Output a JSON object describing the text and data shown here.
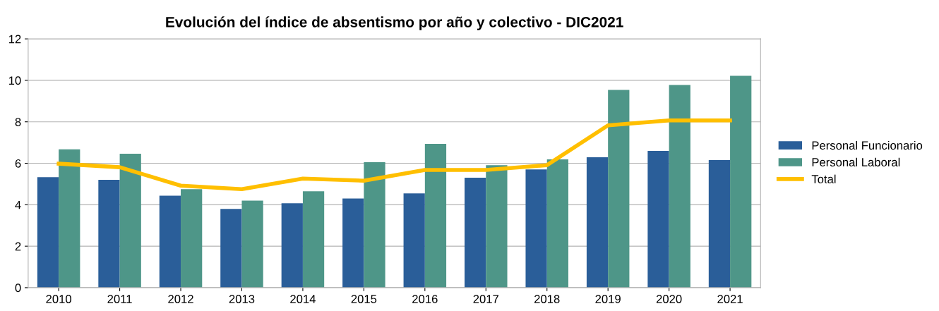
{
  "chart_data": {
    "type": "bar",
    "title": "Evolución del índice de absentismo por año y colectivo - DIC2021",
    "categories": [
      "2010",
      "2011",
      "2012",
      "2013",
      "2014",
      "2015",
      "2016",
      "2017",
      "2018",
      "2019",
      "2020",
      "2021"
    ],
    "series": [
      {
        "name": "Personal Funcionario",
        "color": "#2a5e99",
        "values": [
          5.33,
          5.2,
          4.44,
          3.8,
          4.07,
          4.3,
          4.55,
          5.3,
          5.7,
          6.29,
          6.6,
          6.15
        ]
      },
      {
        "name": "Personal Laboral",
        "color": "#4e9688",
        "values": [
          6.67,
          6.46,
          4.75,
          4.2,
          4.65,
          6.05,
          6.94,
          5.91,
          6.19,
          9.54,
          9.78,
          10.22
        ]
      },
      {
        "name": "Total",
        "type": "line",
        "color": "#ffbf00",
        "values": [
          5.98,
          5.81,
          4.92,
          4.75,
          5.26,
          5.16,
          5.68,
          5.68,
          5.91,
          7.83,
          8.07,
          8.07
        ]
      }
    ],
    "ylim": [
      0,
      12
    ],
    "yticks": [
      0,
      2,
      4,
      6,
      8,
      10,
      12
    ],
    "grid": "y",
    "legend": "right",
    "marker": "none",
    "line_style": "solid"
  }
}
